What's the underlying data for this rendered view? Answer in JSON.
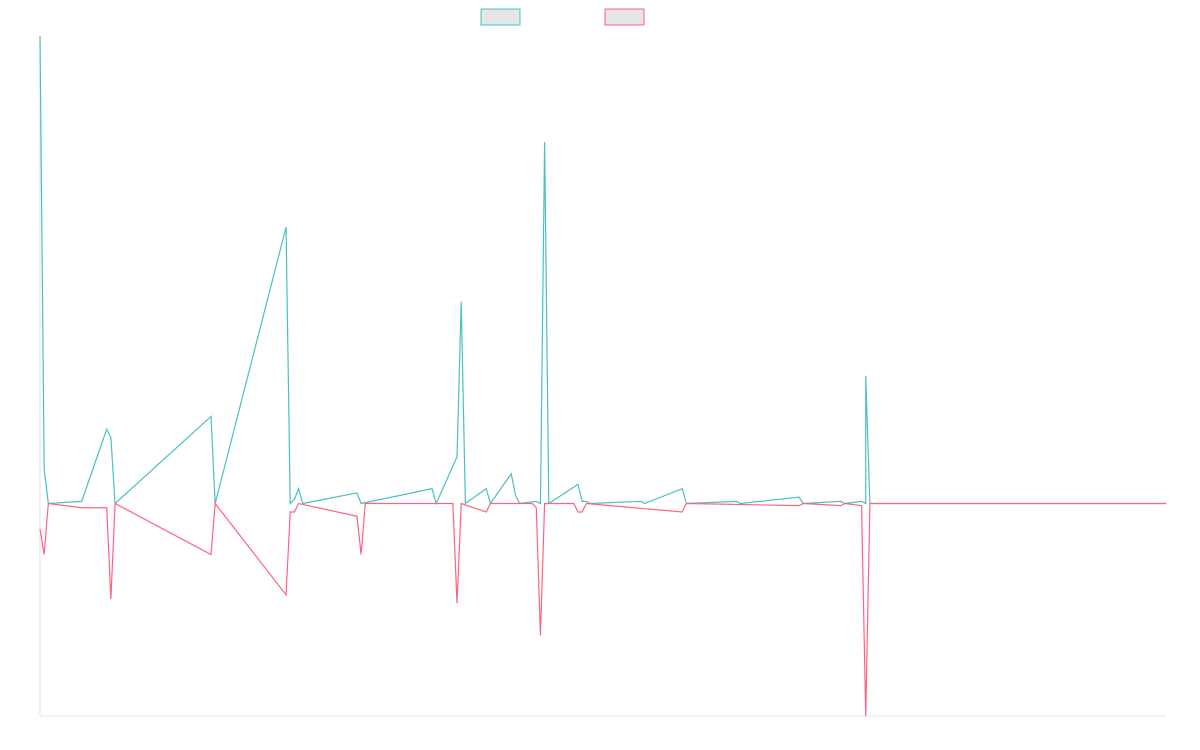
{
  "chart_data": {
    "type": "line",
    "title": "",
    "xlabel": "",
    "ylabel": "",
    "grid": false,
    "legend_placement": "top-center",
    "x_count": 271,
    "ylim": [
      -1.0,
      2.2
    ],
    "series": [
      {
        "color": "#4bc0c0",
        "fill": "#e6e6e6",
        "points": [
          [
            0,
            2.2
          ],
          [
            1,
            0.16
          ],
          [
            2,
            0
          ],
          [
            10,
            0.01
          ],
          [
            16,
            0.35
          ],
          [
            17,
            0.31
          ],
          [
            18,
            0
          ],
          [
            41,
            0.41
          ],
          [
            42,
            0
          ],
          [
            59,
            1.3
          ],
          [
            60,
            0
          ],
          [
            61,
            0.02
          ],
          [
            62,
            0.07
          ],
          [
            63,
            0
          ],
          [
            76,
            0.05
          ],
          [
            77,
            0
          ],
          [
            94,
            0.07
          ],
          [
            95,
            0
          ],
          [
            100,
            0.22
          ],
          [
            101,
            0.95
          ],
          [
            102,
            0
          ],
          [
            107,
            0.07
          ],
          [
            108,
            0
          ],
          [
            113,
            0.14
          ],
          [
            114,
            0.04
          ],
          [
            115,
            0
          ],
          [
            119,
            0.01
          ],
          [
            120,
            0
          ],
          [
            121,
            1.7
          ],
          [
            122,
            0
          ],
          [
            129,
            0.09
          ],
          [
            130,
            0.01
          ],
          [
            131,
            0.01
          ],
          [
            132,
            0
          ],
          [
            144,
            0.01
          ],
          [
            145,
            0
          ],
          [
            154,
            0.07
          ],
          [
            155,
            0
          ],
          [
            167,
            0.01
          ],
          [
            168,
            0
          ],
          [
            182,
            0.03
          ],
          [
            183,
            0
          ],
          [
            192,
            0.01
          ],
          [
            193,
            0
          ],
          [
            197,
            0.01
          ],
          [
            198,
            0
          ],
          [
            198,
            0.6
          ],
          [
            199,
            0
          ],
          [
            270,
            0
          ]
        ]
      },
      {
        "color": "#ff6384",
        "fill": "#e6e6e6",
        "points": [
          [
            0,
            -0.12
          ],
          [
            1,
            -0.24
          ],
          [
            2,
            0
          ],
          [
            10,
            -0.02
          ],
          [
            16,
            -0.02
          ],
          [
            17,
            -0.45
          ],
          [
            18,
            0
          ],
          [
            41,
            -0.24
          ],
          [
            42,
            0
          ],
          [
            59,
            -0.43
          ],
          [
            60,
            -0.04
          ],
          [
            61,
            -0.04
          ],
          [
            62,
            0
          ],
          [
            76,
            -0.06
          ],
          [
            77,
            -0.24
          ],
          [
            78,
            0
          ],
          [
            99,
            0
          ],
          [
            100,
            -0.47
          ],
          [
            101,
            0
          ],
          [
            107,
            -0.04
          ],
          [
            108,
            0
          ],
          [
            118,
            0
          ],
          [
            119,
            -0.02
          ],
          [
            120,
            -0.62
          ],
          [
            121,
            0
          ],
          [
            128,
            0
          ],
          [
            129,
            -0.04
          ],
          [
            130,
            -0.04
          ],
          [
            131,
            0
          ],
          [
            154,
            -0.04
          ],
          [
            155,
            0
          ],
          [
            182,
            -0.01
          ],
          [
            183,
            0
          ],
          [
            192,
            -0.01
          ],
          [
            193,
            0
          ],
          [
            197,
            -0.01
          ],
          [
            198,
            -1.0
          ],
          [
            199,
            0
          ],
          [
            270,
            0
          ]
        ]
      }
    ]
  }
}
